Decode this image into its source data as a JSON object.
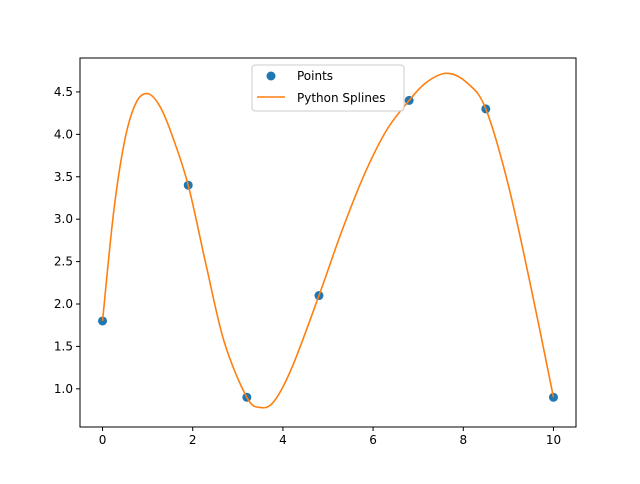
{
  "chart_data": {
    "type": "scatter",
    "title": "",
    "xlabel": "",
    "ylabel": "",
    "xlim": [
      -0.5,
      10.5
    ],
    "ylim": [
      0.55,
      4.9
    ],
    "x_ticks": [
      0,
      2,
      4,
      6,
      8,
      10
    ],
    "x_tick_labels": [
      "0",
      "2",
      "4",
      "6",
      "8",
      "10"
    ],
    "y_ticks": [
      1.0,
      1.5,
      2.0,
      2.5,
      3.0,
      3.5,
      4.0,
      4.5
    ],
    "y_tick_labels": [
      "1.0",
      "1.5",
      "2.0",
      "2.5",
      "3.0",
      "3.5",
      "4.0",
      "4.5"
    ],
    "grid": false,
    "legend_position": "upper center",
    "series": [
      {
        "name": "Points",
        "kind": "scatter",
        "color": "#1f77b4",
        "x": [
          0,
          1.9,
          3.2,
          4.8,
          6.8,
          8.5,
          10
        ],
        "y": [
          1.8,
          3.4,
          0.9,
          2.1,
          4.4,
          4.3,
          0.9
        ]
      },
      {
        "name": "Python Splines",
        "kind": "line",
        "color": "#ff7f0e",
        "x": [
          0,
          0.25,
          0.5,
          0.75,
          1.0,
          1.25,
          1.5,
          1.9,
          2.3,
          2.7,
          3.2,
          3.5,
          3.8,
          4.2,
          4.8,
          5.3,
          5.8,
          6.3,
          6.8,
          7.2,
          7.65,
          8.1,
          8.5,
          9.0,
          9.5,
          10
        ],
        "y": [
          1.8,
          3.1,
          3.95,
          4.38,
          4.48,
          4.35,
          4.05,
          3.4,
          2.45,
          1.55,
          0.9,
          0.78,
          0.85,
          1.25,
          2.1,
          2.85,
          3.52,
          4.05,
          4.4,
          4.62,
          4.72,
          4.6,
          4.3,
          3.4,
          2.2,
          0.9
        ]
      }
    ]
  }
}
